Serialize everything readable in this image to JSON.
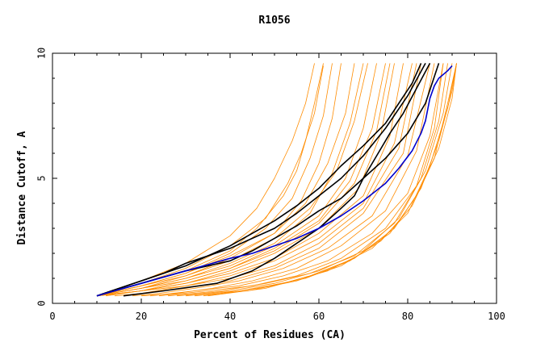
{
  "chart_data": {
    "type": "line",
    "title": "R1056",
    "xlabel": "Percent of Residues (CA)",
    "ylabel": "Distance Cutoff, A",
    "xlim": [
      0,
      100
    ],
    "ylim": [
      0,
      10
    ],
    "xticks": [
      "0",
      "20",
      "40",
      "60",
      "80",
      "100"
    ],
    "yticks": [
      "0",
      "5",
      "10"
    ],
    "grid": false,
    "colors": {
      "orange": "#ff8c00",
      "black": "#000000",
      "blue": "#0000cc"
    },
    "series": [
      {
        "color": "orange",
        "x": [
          10,
          20,
          30,
          40,
          46,
          52,
          55,
          57,
          59,
          61
        ],
        "y": [
          0.3,
          0.8,
          1.3,
          2.1,
          3.0,
          4.3,
          5.3,
          6.5,
          8.0,
          9.6
        ]
      },
      {
        "color": "orange",
        "x": [
          10,
          20,
          30,
          40,
          48,
          53,
          56,
          59,
          61
        ],
        "y": [
          0.3,
          0.8,
          1.4,
          2.3,
          3.4,
          4.8,
          6.0,
          7.6,
          9.5
        ]
      },
      {
        "color": "orange",
        "x": [
          10,
          20,
          30,
          40,
          46,
          50,
          54,
          57,
          59
        ],
        "y": [
          0.3,
          0.9,
          1.6,
          2.7,
          3.8,
          5.0,
          6.5,
          8.0,
          9.6
        ]
      },
      {
        "color": "orange",
        "x": [
          10,
          20,
          30,
          40,
          48,
          54,
          58,
          61,
          63
        ],
        "y": [
          0.3,
          0.7,
          1.2,
          2.0,
          3.0,
          4.2,
          5.8,
          7.5,
          9.6
        ]
      },
      {
        "color": "orange",
        "x": [
          10,
          20,
          30,
          40,
          50,
          56,
          60,
          63,
          65
        ],
        "y": [
          0.3,
          0.7,
          1.1,
          1.8,
          2.8,
          4.1,
          5.6,
          7.4,
          9.6
        ]
      },
      {
        "color": "orange",
        "x": [
          10,
          20,
          30,
          40,
          50,
          57,
          62,
          66,
          68
        ],
        "y": [
          0.3,
          0.7,
          1.2,
          1.9,
          2.8,
          4.0,
          5.6,
          7.6,
          9.6
        ]
      },
      {
        "color": "orange",
        "x": [
          10,
          20,
          30,
          40,
          50,
          58,
          63,
          67,
          70
        ],
        "y": [
          0.3,
          0.6,
          1.0,
          1.6,
          2.4,
          3.6,
          5.2,
          7.2,
          9.6
        ]
      },
      {
        "color": "orange",
        "x": [
          10,
          20,
          30,
          40,
          50,
          58,
          64,
          68,
          71
        ],
        "y": [
          0.3,
          0.6,
          1.1,
          1.7,
          2.6,
          3.8,
          5.3,
          7.3,
          9.6
        ]
      },
      {
        "color": "orange",
        "x": [
          10,
          20,
          30,
          40,
          50,
          60,
          66,
          70,
          73
        ],
        "y": [
          0.3,
          0.6,
          1.0,
          1.5,
          2.3,
          3.5,
          5.0,
          7.0,
          9.6
        ]
      },
      {
        "color": "orange",
        "x": [
          10,
          20,
          30,
          40,
          50,
          60,
          67,
          72,
          75
        ],
        "y": [
          0.3,
          0.6,
          0.9,
          1.4,
          2.2,
          3.3,
          4.9,
          7.0,
          9.6
        ]
      },
      {
        "color": "orange",
        "x": [
          10,
          20,
          30,
          40,
          50,
          60,
          68,
          73,
          76
        ],
        "y": [
          0.3,
          0.5,
          0.9,
          1.4,
          2.1,
          3.2,
          4.8,
          6.9,
          9.6
        ]
      },
      {
        "color": "orange",
        "x": [
          10,
          20,
          30,
          40,
          50,
          60,
          69,
          74,
          77
        ],
        "y": [
          0.3,
          0.5,
          0.8,
          1.3,
          2.0,
          3.0,
          4.6,
          6.8,
          9.6
        ]
      },
      {
        "color": "orange",
        "x": [
          10,
          20,
          30,
          40,
          50,
          60,
          70,
          76,
          79
        ],
        "y": [
          0.3,
          0.5,
          0.8,
          1.2,
          1.8,
          2.8,
          4.3,
          6.7,
          9.6
        ]
      },
      {
        "color": "orange",
        "x": [
          12,
          20,
          30,
          40,
          50,
          60,
          70,
          77,
          81
        ],
        "y": [
          0.3,
          0.5,
          0.7,
          1.1,
          1.7,
          2.6,
          4.0,
          6.4,
          9.6
        ]
      },
      {
        "color": "orange",
        "x": [
          14,
          20,
          30,
          40,
          50,
          60,
          70,
          78,
          82
        ],
        "y": [
          0.3,
          0.4,
          0.7,
          1.0,
          1.5,
          2.4,
          3.8,
          6.2,
          9.6
        ]
      },
      {
        "color": "orange",
        "x": [
          16,
          20,
          30,
          40,
          50,
          60,
          70,
          79,
          83
        ],
        "y": [
          0.3,
          0.4,
          0.6,
          0.9,
          1.4,
          2.2,
          3.6,
          6.0,
          9.6
        ]
      },
      {
        "color": "orange",
        "x": [
          18,
          24,
          32,
          42,
          52,
          62,
          72,
          80,
          85
        ],
        "y": [
          0.3,
          0.4,
          0.6,
          0.9,
          1.4,
          2.2,
          3.5,
          5.9,
          9.6
        ]
      },
      {
        "color": "orange",
        "x": [
          20,
          28,
          36,
          45,
          55,
          65,
          75,
          82,
          86
        ],
        "y": [
          0.3,
          0.4,
          0.6,
          0.9,
          1.4,
          2.3,
          3.7,
          6.1,
          9.6
        ]
      },
      {
        "color": "orange",
        "x": [
          22,
          32,
          42,
          52,
          62,
          72,
          80,
          85,
          88
        ],
        "y": [
          0.3,
          0.5,
          0.7,
          1.1,
          1.7,
          2.8,
          4.4,
          6.7,
          9.6
        ]
      },
      {
        "color": "orange",
        "x": [
          24,
          35,
          45,
          55,
          65,
          75,
          82,
          86,
          88
        ],
        "y": [
          0.3,
          0.5,
          0.7,
          1.1,
          1.8,
          3.0,
          4.7,
          7.0,
          9.6
        ]
      },
      {
        "color": "orange",
        "x": [
          26,
          38,
          48,
          58,
          68,
          77,
          83,
          87,
          89
        ],
        "y": [
          0.3,
          0.5,
          0.8,
          1.2,
          1.9,
          3.2,
          5.0,
          7.3,
          9.6
        ]
      },
      {
        "color": "orange",
        "x": [
          28,
          40,
          50,
          60,
          70,
          78,
          84,
          88,
          90
        ],
        "y": [
          0.3,
          0.5,
          0.8,
          1.3,
          2.1,
          3.4,
          5.3,
          7.6,
          9.6
        ]
      },
      {
        "color": "orange",
        "x": [
          30,
          42,
          52,
          62,
          72,
          80,
          85,
          89,
          91
        ],
        "y": [
          0.3,
          0.5,
          0.8,
          1.3,
          2.2,
          3.6,
          5.5,
          7.8,
          9.6
        ]
      },
      {
        "color": "orange",
        "x": [
          32,
          44,
          55,
          65,
          74,
          81,
          86,
          89,
          91
        ],
        "y": [
          0.3,
          0.5,
          0.9,
          1.5,
          2.5,
          3.9,
          5.8,
          8.0,
          9.6
        ]
      },
      {
        "color": "orange",
        "x": [
          34,
          46,
          57,
          67,
          76,
          82,
          87,
          90,
          91
        ],
        "y": [
          0.3,
          0.6,
          1.0,
          1.7,
          2.8,
          4.3,
          6.2,
          8.2,
          9.6
        ]
      },
      {
        "color": "orange",
        "x": [
          35,
          48,
          58,
          68,
          77,
          83,
          87,
          90,
          91
        ],
        "y": [
          0.3,
          0.6,
          1.1,
          1.8,
          3.0,
          4.6,
          6.5,
          8.5,
          9.6
        ]
      },
      {
        "color": "black",
        "x": [
          10,
          15,
          20,
          25,
          30,
          35,
          40,
          45,
          50,
          55,
          60,
          65,
          70,
          75,
          78,
          81,
          83
        ],
        "y": [
          0.3,
          0.6,
          0.9,
          1.2,
          1.6,
          1.9,
          2.3,
          2.8,
          3.3,
          3.9,
          4.6,
          5.5,
          6.3,
          7.2,
          8.0,
          8.8,
          9.6
        ]
      },
      {
        "color": "black",
        "x": [
          10,
          20,
          30,
          35,
          40,
          45,
          50,
          55,
          60,
          65,
          70,
          75,
          80,
          84
        ],
        "y": [
          0.3,
          0.9,
          1.5,
          1.9,
          2.2,
          2.6,
          3.0,
          3.6,
          4.3,
          5.0,
          5.9,
          7.0,
          8.3,
          9.6
        ]
      },
      {
        "color": "black",
        "x": [
          10,
          20,
          30,
          40,
          45,
          50,
          55,
          60,
          65,
          70,
          75,
          80,
          84,
          87
        ],
        "y": [
          0.3,
          0.8,
          1.3,
          1.7,
          2.1,
          2.6,
          3.1,
          3.7,
          4.2,
          5.0,
          5.8,
          6.8,
          8.0,
          9.6
        ]
      },
      {
        "color": "black",
        "x": [
          16,
          25,
          37,
          45,
          50,
          55,
          60,
          65,
          68,
          70,
          73,
          76,
          79,
          82,
          85
        ],
        "y": [
          0.3,
          0.5,
          0.8,
          1.3,
          1.8,
          2.4,
          3.0,
          3.8,
          4.3,
          5.0,
          5.9,
          6.8,
          7.6,
          8.6,
          9.6
        ]
      },
      {
        "color": "blue",
        "x": [
          10,
          20,
          30,
          40,
          45,
          50,
          55,
          60,
          65,
          70,
          75,
          78,
          81,
          83,
          84,
          85,
          86,
          87,
          89,
          90
        ],
        "y": [
          0.3,
          0.8,
          1.3,
          1.8,
          2.0,
          2.3,
          2.6,
          3.0,
          3.5,
          4.1,
          4.8,
          5.4,
          6.1,
          6.8,
          7.3,
          8.2,
          8.7,
          9.0,
          9.3,
          9.5
        ]
      }
    ]
  }
}
